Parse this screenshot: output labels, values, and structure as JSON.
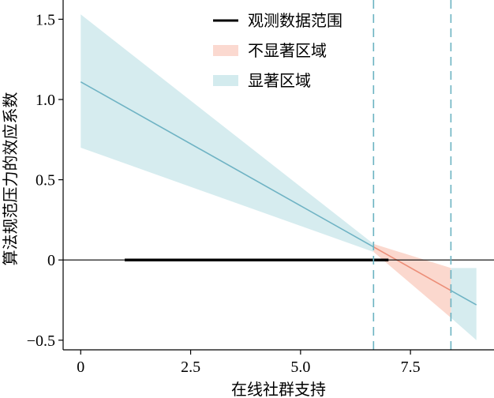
{
  "chart_data": {
    "type": "line",
    "xlabel": "在线社群支持",
    "ylabel": "算法规范压力的效应系数",
    "xlim": [
      -0.4,
      9.4
    ],
    "ylim": [
      -0.56,
      1.62
    ],
    "x_ticks": [
      0,
      2.5,
      5.0,
      7.5
    ],
    "x_tick_labels": [
      "0",
      "2.5",
      "5.0",
      "7.5"
    ],
    "y_ticks": [
      1.5,
      1.0,
      0.5,
      0,
      -0.5
    ],
    "y_tick_labels": [
      "1.5",
      "1.0",
      "0.5",
      "0",
      "−0.5"
    ],
    "grid": false,
    "legend_position": "top-right",
    "zero_line": 0,
    "effect_line": {
      "x_start": 0,
      "y_start": 1.11,
      "x_end": 9,
      "y_end": -0.28
    },
    "confidence_band": {
      "x": [
        0,
        6.66,
        8.42,
        9
      ],
      "lower": [
        0.7,
        0.05,
        -0.36,
        -0.5
      ],
      "upper": [
        1.53,
        0.1,
        -0.05,
        -0.05
      ]
    },
    "significance_boundaries": [
      6.66,
      8.42
    ],
    "observed_range": [
      1.0,
      7.0
    ],
    "series": [
      {
        "name": "观测数据范围",
        "color": "#000000",
        "kind": "line"
      },
      {
        "name": "不显著区域",
        "color": "#fbd9d0",
        "kind": "band"
      },
      {
        "name": "显著区域",
        "color": "#d3ebee",
        "kind": "band"
      }
    ],
    "colors": {
      "significant_band": "#d6ecef",
      "nonsignificant_band": "#fbd8ce",
      "significant_line": "#6fb3c4",
      "nonsignificant_line": "#ec8e78",
      "boundary_line": "#6bb3c2"
    }
  }
}
